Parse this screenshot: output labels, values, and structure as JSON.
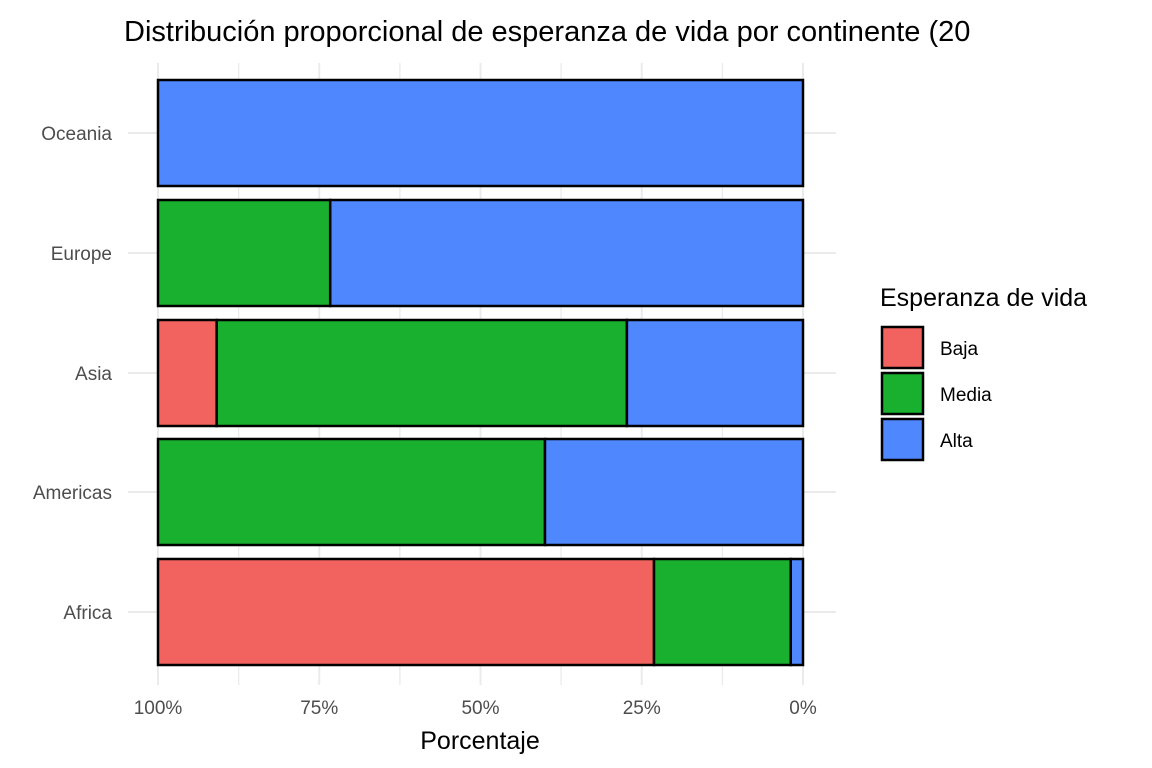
{
  "chart_data": {
    "type": "bar",
    "orientation": "horizontal",
    "stacked": "percent",
    "title": "Distribución proporcional de esperanza de vida por continente (20",
    "xlabel": "Porcentaje",
    "ylabel": "",
    "x_reversed": true,
    "xlim": [
      0,
      100
    ],
    "x_ticks": [
      "100%",
      "75%",
      "50%",
      "25%",
      "0%"
    ],
    "x_tick_values": [
      100,
      75,
      50,
      25,
      0
    ],
    "categories": [
      "Africa",
      "Americas",
      "Asia",
      "Europe",
      "Oceania"
    ],
    "series": [
      {
        "name": "Baja",
        "color": "#F2625E",
        "values": [
          76.9,
          0,
          9.1,
          0,
          0
        ]
      },
      {
        "name": "Media",
        "color": "#1AB02F",
        "values": [
          21.2,
          60.0,
          63.6,
          26.7,
          0
        ]
      },
      {
        "name": "Alta",
        "color": "#4F87FF",
        "values": [
          1.9,
          40.0,
          27.3,
          73.3,
          100
        ]
      }
    ],
    "legend": {
      "title": "Esperanza de vida",
      "position": "right"
    },
    "grid": true
  }
}
